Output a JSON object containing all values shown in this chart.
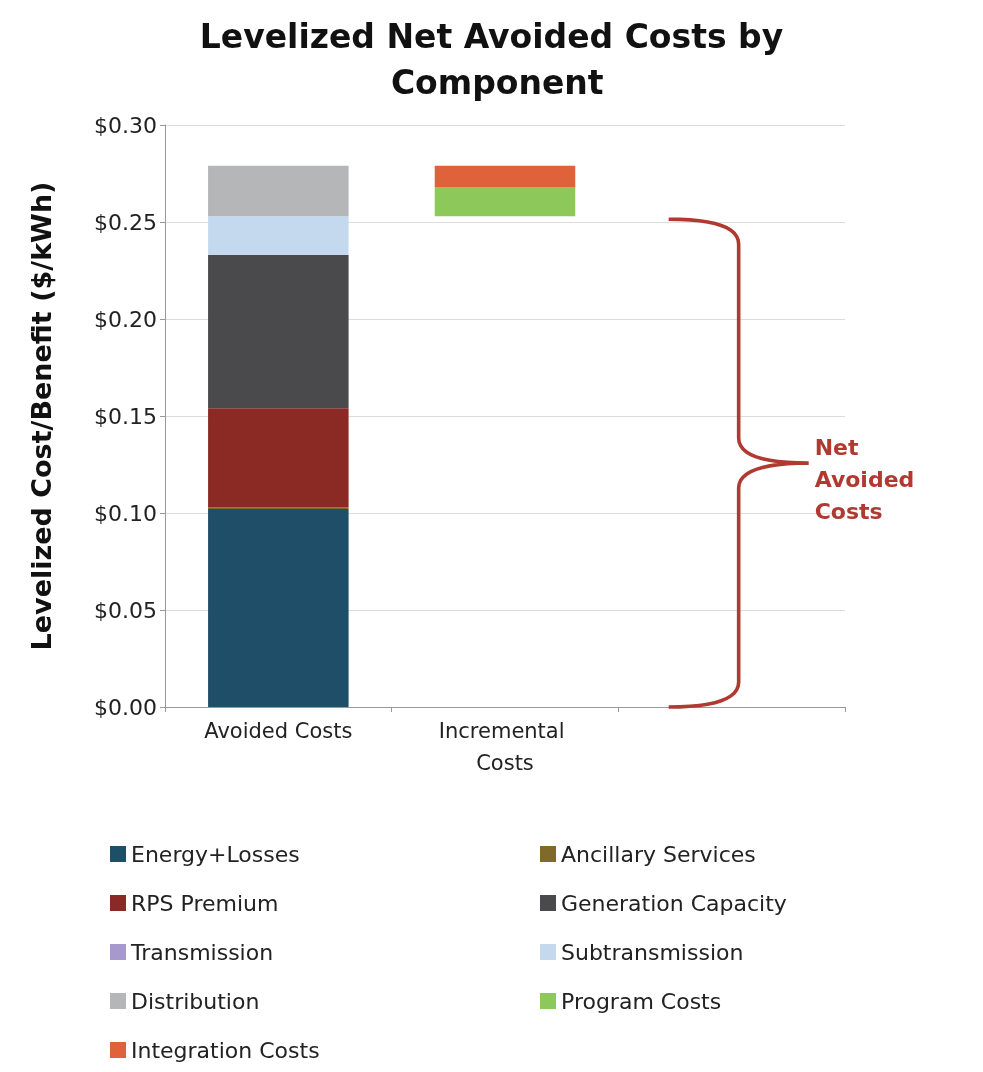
{
  "chart_data": {
    "type": "bar",
    "title": "Levelized Net Avoided Costs by Component",
    "ylabel": "Levelized Cost/Benefit ($/kWh)",
    "categories": [
      "Avoided Costs",
      "Incremental Costs",
      null
    ],
    "stacked": true,
    "ylim": [
      0,
      0.3
    ],
    "yticks": [
      {
        "value": 0,
        "label": "$0.00"
      },
      {
        "value": 0.05,
        "label": "$0.05"
      },
      {
        "value": 0.1,
        "label": "$0.10"
      },
      {
        "value": 0.15,
        "label": "$0.15"
      },
      {
        "value": 0.2,
        "label": "$0.20"
      },
      {
        "value": 0.25,
        "label": "$0.25"
      },
      {
        "value": 0.3,
        "label": "$0.30"
      }
    ],
    "grid": "y",
    "legend": "bottom",
    "series": [
      {
        "name": "Energy+Losses",
        "color": "#1f4e69",
        "values": [
          0.102,
          null,
          null
        ]
      },
      {
        "name": "Ancillary Services",
        "color": "#7f6a2a",
        "values": [
          0.001,
          null,
          null
        ]
      },
      {
        "name": "RPS Premium",
        "color": "#8b2a25",
        "values": [
          0.051,
          null,
          null
        ]
      },
      {
        "name": "Generation Capacity",
        "color": "#4a4a4c",
        "values": [
          0.079,
          null,
          null
        ]
      },
      {
        "name": "Transmission",
        "color": "#a899cc",
        "values": [
          0,
          null,
          null
        ]
      },
      {
        "name": "Subtransmission",
        "color": "#c5d9ee",
        "values": [
          0.02,
          null,
          null
        ]
      },
      {
        "name": "Distribution",
        "color": "#b5b6b8",
        "values": [
          0.026,
          null,
          null
        ]
      },
      {
        "name": "Program Costs",
        "color": "#8dc85a",
        "values": [
          null,
          0.015,
          null
        ],
        "base": [
          null,
          0.253,
          null
        ]
      },
      {
        "name": "Integration Costs",
        "color": "#e0623a",
        "values": [
          null,
          0.011,
          null
        ]
      }
    ],
    "annotations": [
      "Net Avoided Costs"
    ]
  }
}
